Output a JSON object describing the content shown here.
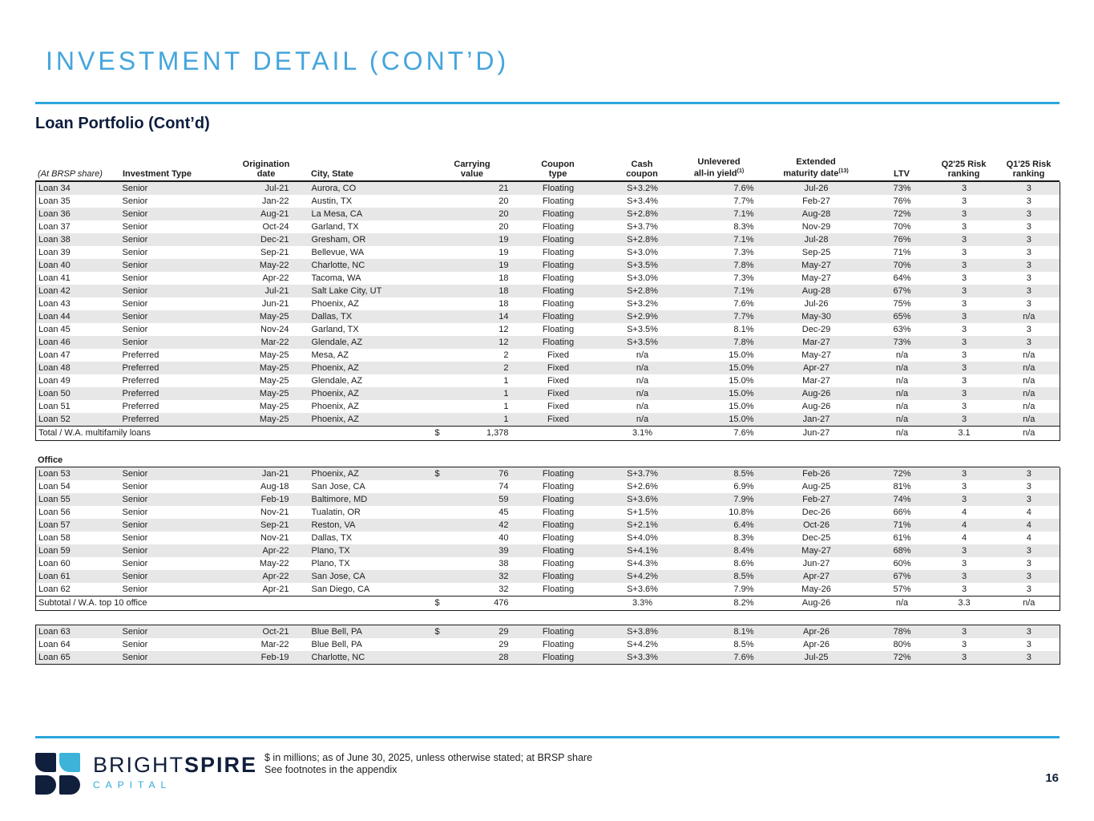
{
  "page": {
    "title": "INVESTMENT DETAIL (CONT’D)",
    "subtitle": "Loan Portfolio (Cont’d)",
    "page_number": "16",
    "accent_blue": "#2ba7dc",
    "title_blue": "#44a5dd",
    "navy": "#101f3c",
    "row_stripe": "#e7e7e7"
  },
  "footer": {
    "logo_text_regular": "BRIGHT",
    "logo_text_bold": "SPIRE",
    "logo_subtext": "CAPITAL",
    "note_line1": "$ in millions; as of June 30, 2025, unless otherwise stated; at BRSP share",
    "note_line2": "See footnotes in the appendix"
  },
  "table": {
    "columns": {
      "corner": "(At BRSP share)",
      "investment_type": "Investment Type",
      "origination": [
        "Origination",
        "date"
      ],
      "city": "City, State",
      "carrying": [
        "Carrying",
        "value"
      ],
      "coupon_type": [
        "Coupon",
        "type"
      ],
      "cash_coupon": [
        "Cash",
        "coupon"
      ],
      "yield": {
        "line1": "Unlevered",
        "line2": "all-in yield",
        "sup": "(1)"
      },
      "maturity": {
        "line1": "Extended",
        "line2": "maturity date",
        "sup": "(13)"
      },
      "ltv": "LTV",
      "q2": [
        "Q2'25 Risk",
        "ranking"
      ],
      "q1": [
        "Q1'25 Risk",
        "ranking"
      ]
    },
    "sections": [
      {
        "label": null,
        "rows": [
          [
            "Loan 34",
            "Senior",
            "Jul-21",
            "Aurora, CO",
            "",
            "21",
            "Floating",
            "S+3.2%",
            "7.6%",
            "Jul-26",
            "73%",
            "3",
            "3"
          ],
          [
            "Loan 35",
            "Senior",
            "Jan-22",
            "Austin, TX",
            "",
            "20",
            "Floating",
            "S+3.4%",
            "7.7%",
            "Feb-27",
            "76%",
            "3",
            "3"
          ],
          [
            "Loan 36",
            "Senior",
            "Aug-21",
            "La Mesa, CA",
            "",
            "20",
            "Floating",
            "S+2.8%",
            "7.1%",
            "Aug-28",
            "72%",
            "3",
            "3"
          ],
          [
            "Loan 37",
            "Senior",
            "Oct-24",
            "Garland, TX",
            "",
            "20",
            "Floating",
            "S+3.7%",
            "8.3%",
            "Nov-29",
            "70%",
            "3",
            "3"
          ],
          [
            "Loan 38",
            "Senior",
            "Dec-21",
            "Gresham, OR",
            "",
            "19",
            "Floating",
            "S+2.8%",
            "7.1%",
            "Jul-28",
            "76%",
            "3",
            "3"
          ],
          [
            "Loan 39",
            "Senior",
            "Sep-21",
            "Bellevue, WA",
            "",
            "19",
            "Floating",
            "S+3.0%",
            "7.3%",
            "Sep-25",
            "71%",
            "3",
            "3"
          ],
          [
            "Loan 40",
            "Senior",
            "May-22",
            "Charlotte, NC",
            "",
            "19",
            "Floating",
            "S+3.5%",
            "7.8%",
            "May-27",
            "70%",
            "3",
            "3"
          ],
          [
            "Loan 41",
            "Senior",
            "Apr-22",
            "Tacoma, WA",
            "",
            "18",
            "Floating",
            "S+3.0%",
            "7.3%",
            "May-27",
            "64%",
            "3",
            "3"
          ],
          [
            "Loan 42",
            "Senior",
            "Jul-21",
            "Salt Lake City, UT",
            "",
            "18",
            "Floating",
            "S+2.8%",
            "7.1%",
            "Aug-28",
            "67%",
            "3",
            "3"
          ],
          [
            "Loan 43",
            "Senior",
            "Jun-21",
            "Phoenix, AZ",
            "",
            "18",
            "Floating",
            "S+3.2%",
            "7.6%",
            "Jul-26",
            "75%",
            "3",
            "3"
          ],
          [
            "Loan 44",
            "Senior",
            "May-25",
            "Dallas, TX",
            "",
            "14",
            "Floating",
            "S+2.9%",
            "7.7%",
            "May-30",
            "65%",
            "3",
            "n/a"
          ],
          [
            "Loan 45",
            "Senior",
            "Nov-24",
            "Garland, TX",
            "",
            "12",
            "Floating",
            "S+3.5%",
            "8.1%",
            "Dec-29",
            "63%",
            "3",
            "3"
          ],
          [
            "Loan 46",
            "Senior",
            "Mar-22",
            "Glendale, AZ",
            "",
            "12",
            "Floating",
            "S+3.5%",
            "7.8%",
            "Mar-27",
            "73%",
            "3",
            "3"
          ],
          [
            "Loan 47",
            "Preferred",
            "May-25",
            "Mesa, AZ",
            "",
            "2",
            "Fixed",
            "n/a",
            "15.0%",
            "May-27",
            "n/a",
            "3",
            "n/a"
          ],
          [
            "Loan 48",
            "Preferred",
            "May-25",
            "Phoenix, AZ",
            "",
            "2",
            "Fixed",
            "n/a",
            "15.0%",
            "Apr-27",
            "n/a",
            "3",
            "n/a"
          ],
          [
            "Loan 49",
            "Preferred",
            "May-25",
            "Glendale, AZ",
            "",
            "1",
            "Fixed",
            "n/a",
            "15.0%",
            "Mar-27",
            "n/a",
            "3",
            "n/a"
          ],
          [
            "Loan 50",
            "Preferred",
            "May-25",
            "Phoenix, AZ",
            "",
            "1",
            "Fixed",
            "n/a",
            "15.0%",
            "Aug-26",
            "n/a",
            "3",
            "n/a"
          ],
          [
            "Loan 51",
            "Preferred",
            "May-25",
            "Phoenix, AZ",
            "",
            "1",
            "Fixed",
            "n/a",
            "15.0%",
            "Aug-26",
            "n/a",
            "3",
            "n/a"
          ],
          [
            "Loan 52",
            "Preferred",
            "May-25",
            "Phoenix, AZ",
            "",
            "1",
            "Fixed",
            "n/a",
            "15.0%",
            "Jan-27",
            "n/a",
            "3",
            "n/a"
          ]
        ],
        "summary": [
          "Total / W.A. multifamily loans",
          "$",
          "1,378",
          "",
          "3.1%",
          "7.6%",
          "Jun-27",
          "n/a",
          "3.1",
          "n/a"
        ]
      },
      {
        "label": "Office",
        "rows": [
          [
            "Loan 53",
            "Senior",
            "Jan-21",
            "Phoenix, AZ",
            "$",
            "76",
            "Floating",
            "S+3.7%",
            "8.5%",
            "Feb-26",
            "72%",
            "3",
            "3"
          ],
          [
            "Loan 54",
            "Senior",
            "Aug-18",
            "San Jose, CA",
            "",
            "74",
            "Floating",
            "S+2.6%",
            "6.9%",
            "Aug-25",
            "81%",
            "3",
            "3"
          ],
          [
            "Loan 55",
            "Senior",
            "Feb-19",
            "Baltimore, MD",
            "",
            "59",
            "Floating",
            "S+3.6%",
            "7.9%",
            "Feb-27",
            "74%",
            "3",
            "3"
          ],
          [
            "Loan 56",
            "Senior",
            "Nov-21",
            "Tualatin, OR",
            "",
            "45",
            "Floating",
            "S+1.5%",
            "10.8%",
            "Dec-26",
            "66%",
            "4",
            "4"
          ],
          [
            "Loan 57",
            "Senior",
            "Sep-21",
            "Reston, VA",
            "",
            "42",
            "Floating",
            "S+2.1%",
            "6.4%",
            "Oct-26",
            "71%",
            "4",
            "4"
          ],
          [
            "Loan 58",
            "Senior",
            "Nov-21",
            "Dallas, TX",
            "",
            "40",
            "Floating",
            "S+4.0%",
            "8.3%",
            "Dec-25",
            "61%",
            "4",
            "4"
          ],
          [
            "Loan 59",
            "Senior",
            "Apr-22",
            "Plano, TX",
            "",
            "39",
            "Floating",
            "S+4.1%",
            "8.4%",
            "May-27",
            "68%",
            "3",
            "3"
          ],
          [
            "Loan 60",
            "Senior",
            "May-22",
            "Plano, TX",
            "",
            "38",
            "Floating",
            "S+4.3%",
            "8.6%",
            "Jun-27",
            "60%",
            "3",
            "3"
          ],
          [
            "Loan 61",
            "Senior",
            "Apr-22",
            "San Jose, CA",
            "",
            "32",
            "Floating",
            "S+4.2%",
            "8.5%",
            "Apr-27",
            "67%",
            "3",
            "3"
          ],
          [
            "Loan 62",
            "Senior",
            "Apr-21",
            "San Diego, CA",
            "",
            "32",
            "Floating",
            "S+3.6%",
            "7.9%",
            "May-26",
            "57%",
            "3",
            "3"
          ]
        ],
        "summary": [
          "Subtotal / W.A. top 10 office",
          "$",
          "476",
          "",
          "3.3%",
          "8.2%",
          "Aug-26",
          "n/a",
          "3.3",
          "n/a"
        ]
      },
      {
        "label": null,
        "rows": [
          [
            "Loan 63",
            "Senior",
            "Oct-21",
            "Blue Bell, PA",
            "$",
            "29",
            "Floating",
            "S+3.8%",
            "8.1%",
            "Apr-26",
            "78%",
            "3",
            "3"
          ],
          [
            "Loan 64",
            "Senior",
            "Mar-22",
            "Blue Bell, PA",
            "",
            "29",
            "Floating",
            "S+4.2%",
            "8.5%",
            "Apr-26",
            "80%",
            "3",
            "3"
          ],
          [
            "Loan 65",
            "Senior",
            "Feb-19",
            "Charlotte, NC",
            "",
            "28",
            "Floating",
            "S+3.3%",
            "7.6%",
            "Jul-25",
            "72%",
            "3",
            "3"
          ]
        ],
        "summary": null
      }
    ]
  }
}
